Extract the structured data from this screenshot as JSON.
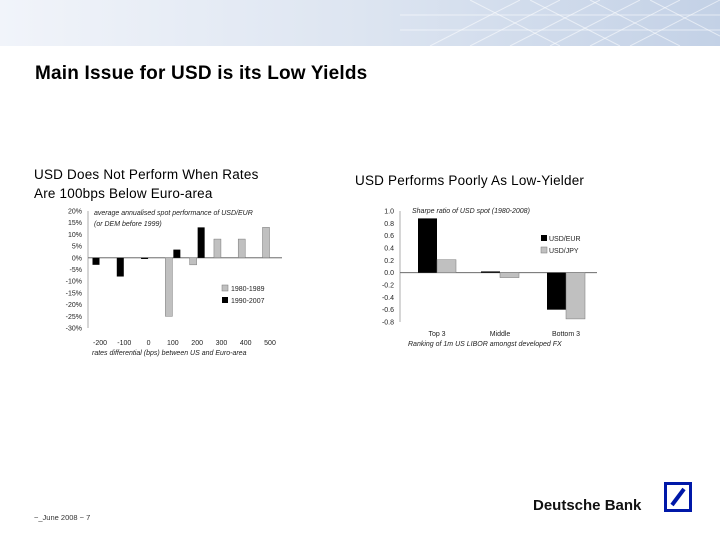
{
  "header": {
    "title": "Main Issue for USD is its Low Yields"
  },
  "left_panel": {
    "subtitle_line1": "USD Does Not Perform When Rates",
    "subtitle_line2": "Are 100bps Below Euro-area"
  },
  "right_panel": {
    "subtitle": "USD Performs Poorly As Low-Yielder"
  },
  "footer": {
    "text": "~_June 2008 ~ 7"
  },
  "brand": {
    "name": "Deutsche Bank",
    "color": "#0018a8"
  },
  "colors": {
    "black_series": "#000000",
    "grey_series": "#c0c0c0",
    "band": "#c3d1e6"
  },
  "chart_data": [
    {
      "type": "bar",
      "title_line1": "average annualised spot performance of USD/EUR",
      "title_line2": "(or DEM before 1999)",
      "xlabel": "rates differential (bps) between US and Euro-area",
      "x_ticks": [
        "-200",
        "-100",
        "0",
        "100",
        "200",
        "300",
        "400",
        "500"
      ],
      "x": [
        -200,
        -100,
        0,
        100,
        200,
        300,
        400,
        500
      ],
      "y_ticks": [
        "20%",
        "15%",
        "10%",
        "5%",
        "0%",
        "-5%",
        "-10%",
        "-15%",
        "-20%",
        "-25%",
        "-30%"
      ],
      "ylim": [
        -30,
        20
      ],
      "series": [
        {
          "name": "1980-1989",
          "values": [
            null,
            null,
            null,
            -25,
            -3,
            8,
            8,
            13
          ]
        },
        {
          "name": "1990-2007",
          "values": [
            -3,
            -8,
            -0.5,
            3.5,
            13,
            null,
            null,
            null
          ]
        }
      ],
      "legend": "bottom-right"
    },
    {
      "type": "bar",
      "title": "Sharpe ratio of USD spot (1980-2008)",
      "xlabel": "Ranking of 1m US LIBOR amongst developed FX",
      "categories": [
        "Top 3",
        "Middle",
        "Bottom 3"
      ],
      "y_ticks": [
        "1.0",
        "0.8",
        "0.6",
        "0.4",
        "0.2",
        "0.0",
        "-0.2",
        "-0.4",
        "-0.6",
        "-0.8"
      ],
      "ylim": [
        -0.8,
        1.0
      ],
      "series": [
        {
          "name": "USD/EUR",
          "values": [
            0.88,
            0.02,
            -0.6
          ]
        },
        {
          "name": "USD/JPY",
          "values": [
            0.21,
            -0.08,
            -0.75
          ]
        }
      ],
      "legend": "right"
    }
  ]
}
